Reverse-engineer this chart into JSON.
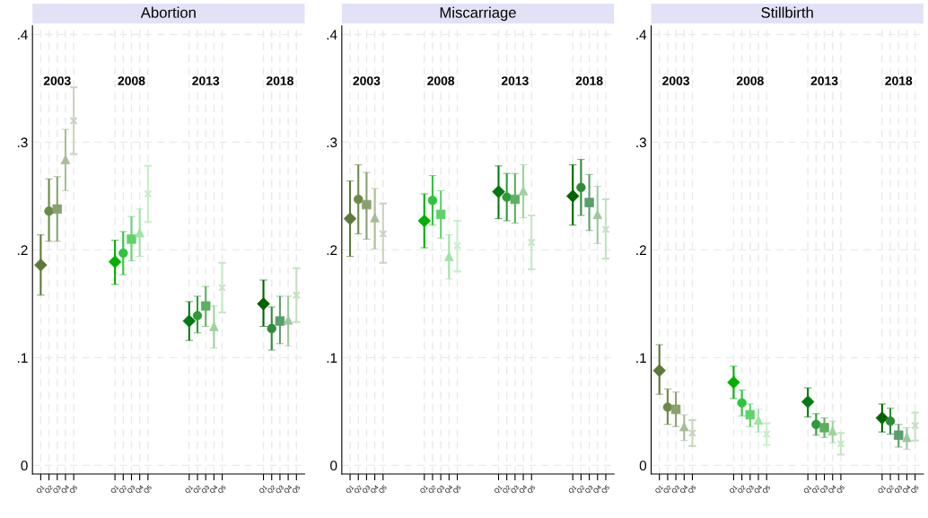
{
  "chart_data": [
    {
      "type": "scatter",
      "title": "Abortion",
      "annotations": [
        "2003",
        "2008",
        "2013",
        "2018"
      ],
      "categories": [
        "Q1",
        "Q2",
        "Q3",
        "Q4",
        "Q5",
        null,
        null,
        null,
        null,
        "Q1",
        "Q2",
        "Q3",
        "Q4",
        "Q5",
        null,
        null,
        null,
        null,
        "Q1",
        "Q2",
        "Q3",
        "Q4",
        "Q5",
        null,
        null,
        null,
        null,
        "Q1",
        "Q2",
        "Q3",
        "Q4",
        "Q5"
      ],
      "ylim": [
        -0.008,
        0.408
      ],
      "yticks": [
        {
          "value": 0,
          "label": "0"
        },
        {
          "value": 0.1,
          "label": ".1"
        },
        {
          "value": 0.2,
          "label": ".2"
        },
        {
          "value": 0.3,
          "label": ".3"
        },
        {
          "value": 0.4,
          "label": ".4"
        }
      ],
      "grid": true,
      "series": [
        {
          "marker": "diamond",
          "colors": [
            "#5b7a3a",
            null,
            null,
            null,
            null,
            null,
            null,
            null,
            null,
            "#00b000",
            null,
            null,
            null,
            null,
            null,
            null,
            null,
            null,
            "#007a10",
            null,
            null,
            null,
            null,
            null,
            null,
            null,
            null,
            "#006400",
            null,
            null,
            null,
            null
          ],
          "values": [
            0.186,
            null,
            null,
            null,
            null,
            null,
            null,
            null,
            null,
            0.189,
            null,
            null,
            null,
            null,
            null,
            null,
            null,
            null,
            0.134,
            null,
            null,
            null,
            null,
            null,
            null,
            null,
            null,
            0.15,
            null,
            null,
            null,
            null
          ],
          "errors": [
            [
              0.158,
              0.214
            ],
            null,
            null,
            null,
            null,
            null,
            null,
            null,
            null,
            [
              0.168,
              0.209
            ],
            null,
            null,
            null,
            null,
            null,
            null,
            null,
            null,
            [
              0.116,
              0.152
            ],
            null,
            null,
            null,
            null,
            null,
            null,
            null,
            null,
            [
              0.129,
              0.172
            ],
            null,
            null,
            null,
            null
          ]
        },
        {
          "marker": "circle",
          "colors": [
            null,
            "#6b8a48",
            null,
            null,
            null,
            null,
            null,
            null,
            null,
            null,
            "#2ec43e",
            null,
            null,
            null,
            null,
            null,
            null,
            null,
            null,
            "#2f9a3a",
            null,
            null,
            null,
            null,
            null,
            null,
            null,
            null,
            "#2e8b3a",
            null,
            null,
            null
          ],
          "values": [
            null,
            0.236,
            null,
            null,
            null,
            null,
            null,
            null,
            null,
            null,
            0.197,
            null,
            null,
            null,
            null,
            null,
            null,
            null,
            null,
            0.139,
            null,
            null,
            null,
            null,
            null,
            null,
            null,
            null,
            0.127,
            null,
            null,
            null
          ],
          "errors": [
            null,
            [
              0.208,
              0.266
            ],
            null,
            null,
            null,
            null,
            null,
            null,
            null,
            null,
            [
              0.177,
              0.217
            ],
            null,
            null,
            null,
            null,
            null,
            null,
            null,
            null,
            [
              0.123,
              0.157
            ],
            null,
            null,
            null,
            null,
            null,
            null,
            null,
            null,
            [
              0.107,
              0.147
            ],
            null,
            null,
            null
          ]
        },
        {
          "marker": "square",
          "colors": [
            null,
            null,
            "#8aa070",
            null,
            null,
            null,
            null,
            null,
            null,
            null,
            null,
            "#5fd36a",
            null,
            null,
            null,
            null,
            null,
            null,
            null,
            null,
            "#5cb060",
            null,
            null,
            null,
            null,
            null,
            null,
            null,
            null,
            "#5a9e6a",
            null,
            null
          ],
          "values": [
            null,
            null,
            0.238,
            null,
            null,
            null,
            null,
            null,
            null,
            null,
            null,
            0.21,
            null,
            null,
            null,
            null,
            null,
            null,
            null,
            null,
            0.148,
            null,
            null,
            null,
            null,
            null,
            null,
            null,
            null,
            0.134,
            null,
            null
          ],
          "errors": [
            null,
            null,
            [
              0.208,
              0.268
            ],
            null,
            null,
            null,
            null,
            null,
            null,
            null,
            null,
            [
              0.19,
              0.231
            ],
            null,
            null,
            null,
            null,
            null,
            null,
            null,
            null,
            [
              0.129,
              0.166
            ],
            null,
            null,
            null,
            null,
            null,
            null,
            null,
            null,
            [
              0.113,
              0.157
            ],
            null,
            null
          ]
        },
        {
          "marker": "triangle",
          "colors": [
            null,
            null,
            null,
            "#a8bc98",
            null,
            null,
            null,
            null,
            null,
            null,
            null,
            null,
            "#9fe2a5",
            null,
            null,
            null,
            null,
            null,
            null,
            null,
            null,
            "#9ed29e",
            null,
            null,
            null,
            null,
            null,
            null,
            null,
            null,
            "#9cc79f",
            null
          ],
          "values": [
            null,
            null,
            null,
            0.284,
            null,
            null,
            null,
            null,
            null,
            null,
            null,
            null,
            0.216,
            null,
            null,
            null,
            null,
            null,
            null,
            null,
            null,
            0.129,
            null,
            null,
            null,
            null,
            null,
            null,
            null,
            null,
            0.135,
            null
          ],
          "errors": [
            null,
            null,
            null,
            [
              0.255,
              0.312
            ],
            null,
            null,
            null,
            null,
            null,
            null,
            null,
            null,
            [
              0.194,
              0.238
            ],
            null,
            null,
            null,
            null,
            null,
            null,
            null,
            null,
            [
              0.109,
              0.148
            ],
            null,
            null,
            null,
            null,
            null,
            null,
            null,
            null,
            [
              0.111,
              0.157
            ],
            null
          ]
        },
        {
          "marker": "cross",
          "colors": [
            null,
            null,
            null,
            null,
            "#c8d4c0",
            null,
            null,
            null,
            null,
            null,
            null,
            null,
            null,
            "#c8eec8",
            null,
            null,
            null,
            null,
            null,
            null,
            null,
            null,
            "#c6e6c6",
            null,
            null,
            null,
            null,
            null,
            null,
            null,
            null,
            "#c4e0c4"
          ],
          "values": [
            null,
            null,
            null,
            null,
            0.32,
            null,
            null,
            null,
            null,
            null,
            null,
            null,
            null,
            0.252,
            null,
            null,
            null,
            null,
            null,
            null,
            null,
            null,
            0.165,
            null,
            null,
            null,
            null,
            null,
            null,
            null,
            null,
            0.158
          ],
          "errors": [
            null,
            null,
            null,
            null,
            [
              0.289,
              0.351
            ],
            null,
            null,
            null,
            null,
            null,
            null,
            null,
            null,
            [
              0.226,
              0.278
            ],
            null,
            null,
            null,
            null,
            null,
            null,
            null,
            null,
            [
              0.142,
              0.188
            ],
            null,
            null,
            null,
            null,
            null,
            null,
            null,
            null,
            [
              0.133,
              0.183
            ]
          ]
        }
      ]
    },
    {
      "type": "scatter",
      "title": "Miscarriage",
      "annotations": [
        "2003",
        "2008",
        "2013",
        "2018"
      ],
      "categories": [
        "Q1",
        "Q2",
        "Q3",
        "Q4",
        "Q5",
        null,
        null,
        null,
        null,
        "Q1",
        "Q2",
        "Q3",
        "Q4",
        "Q5",
        null,
        null,
        null,
        null,
        "Q1",
        "Q2",
        "Q3",
        "Q4",
        "Q5",
        null,
        null,
        null,
        null,
        "Q1",
        "Q2",
        "Q3",
        "Q4",
        "Q5"
      ],
      "ylim": [
        -0.008,
        0.408
      ],
      "yticks": [
        {
          "value": 0,
          "label": "0"
        },
        {
          "value": 0.1,
          "label": ".1"
        },
        {
          "value": 0.2,
          "label": ".2"
        },
        {
          "value": 0.3,
          "label": ".3"
        },
        {
          "value": 0.4,
          "label": ".4"
        }
      ],
      "grid": true,
      "series": [
        {
          "marker": "diamond",
          "colors": [
            "#5b7a3a",
            null,
            null,
            null,
            null,
            null,
            null,
            null,
            null,
            "#00b000",
            null,
            null,
            null,
            null,
            null,
            null,
            null,
            null,
            "#007a10",
            null,
            null,
            null,
            null,
            null,
            null,
            null,
            null,
            "#006400",
            null,
            null,
            null,
            null
          ],
          "values": [
            0.229,
            null,
            null,
            null,
            null,
            null,
            null,
            null,
            null,
            0.227,
            null,
            null,
            null,
            null,
            null,
            null,
            null,
            null,
            0.254,
            null,
            null,
            null,
            null,
            null,
            null,
            null,
            null,
            0.25,
            null,
            null,
            null,
            null
          ],
          "errors": [
            [
              0.194,
              0.264
            ],
            null,
            null,
            null,
            null,
            null,
            null,
            null,
            null,
            [
              0.202,
              0.252
            ],
            null,
            null,
            null,
            null,
            null,
            null,
            null,
            null,
            [
              0.229,
              0.278
            ],
            null,
            null,
            null,
            null,
            null,
            null,
            null,
            null,
            [
              0.223,
              0.279
            ],
            null,
            null,
            null,
            null
          ]
        },
        {
          "marker": "circle",
          "colors": [
            null,
            "#6b8a48",
            null,
            null,
            null,
            null,
            null,
            null,
            null,
            null,
            "#2ec43e",
            null,
            null,
            null,
            null,
            null,
            null,
            null,
            null,
            "#2f9a3a",
            null,
            null,
            null,
            null,
            null,
            null,
            null,
            null,
            "#2e8b3a",
            null,
            null,
            null
          ],
          "values": [
            null,
            0.247,
            null,
            null,
            null,
            null,
            null,
            null,
            null,
            null,
            0.246,
            null,
            null,
            null,
            null,
            null,
            null,
            null,
            null,
            0.249,
            null,
            null,
            null,
            null,
            null,
            null,
            null,
            null,
            0.258,
            null,
            null,
            null
          ],
          "errors": [
            null,
            [
              0.215,
              0.279
            ],
            null,
            null,
            null,
            null,
            null,
            null,
            null,
            null,
            [
              0.223,
              0.269
            ],
            null,
            null,
            null,
            null,
            null,
            null,
            null,
            null,
            [
              0.227,
              0.271
            ],
            null,
            null,
            null,
            null,
            null,
            null,
            null,
            null,
            [
              0.232,
              0.284
            ],
            null,
            null,
            null
          ]
        },
        {
          "marker": "square",
          "colors": [
            null,
            null,
            "#8aa070",
            null,
            null,
            null,
            null,
            null,
            null,
            null,
            null,
            "#5fd36a",
            null,
            null,
            null,
            null,
            null,
            null,
            null,
            null,
            "#5cb060",
            null,
            null,
            null,
            null,
            null,
            null,
            null,
            null,
            "#5a9e6a",
            null,
            null
          ],
          "values": [
            null,
            null,
            0.242,
            null,
            null,
            null,
            null,
            null,
            null,
            null,
            null,
            0.233,
            null,
            null,
            null,
            null,
            null,
            null,
            null,
            null,
            0.247,
            null,
            null,
            null,
            null,
            null,
            null,
            null,
            null,
            0.244,
            null,
            null
          ],
          "errors": [
            null,
            null,
            [
              0.21,
              0.272
            ],
            null,
            null,
            null,
            null,
            null,
            null,
            null,
            null,
            [
              0.211,
              0.255
            ],
            null,
            null,
            null,
            null,
            null,
            null,
            null,
            null,
            [
              0.225,
              0.271
            ],
            null,
            null,
            null,
            null,
            null,
            null,
            null,
            null,
            [
              0.218,
              0.27
            ],
            null,
            null
          ]
        },
        {
          "marker": "triangle",
          "colors": [
            null,
            null,
            null,
            "#a8bc98",
            null,
            null,
            null,
            null,
            null,
            null,
            null,
            null,
            "#9fe2a5",
            null,
            null,
            null,
            null,
            null,
            null,
            null,
            null,
            "#9ed29e",
            null,
            null,
            null,
            null,
            null,
            null,
            null,
            null,
            "#9cc79f",
            null
          ],
          "values": [
            null,
            null,
            null,
            0.23,
            null,
            null,
            null,
            null,
            null,
            null,
            null,
            null,
            0.194,
            null,
            null,
            null,
            null,
            null,
            null,
            null,
            null,
            0.255,
            null,
            null,
            null,
            null,
            null,
            null,
            null,
            null,
            0.233,
            null
          ],
          "errors": [
            null,
            null,
            null,
            [
              0.201,
              0.257
            ],
            null,
            null,
            null,
            null,
            null,
            null,
            null,
            null,
            [
              0.173,
              0.214
            ],
            null,
            null,
            null,
            null,
            null,
            null,
            null,
            null,
            [
              0.23,
              0.279
            ],
            null,
            null,
            null,
            null,
            null,
            null,
            null,
            null,
            [
              0.206,
              0.259
            ],
            null
          ]
        },
        {
          "marker": "cross",
          "colors": [
            null,
            null,
            null,
            null,
            "#c8d4c0",
            null,
            null,
            null,
            null,
            null,
            null,
            null,
            null,
            "#c8eec8",
            null,
            null,
            null,
            null,
            null,
            null,
            null,
            null,
            "#c6e6c6",
            null,
            null,
            null,
            null,
            null,
            null,
            null,
            null,
            "#c4e0c4"
          ],
          "values": [
            null,
            null,
            null,
            null,
            0.215,
            null,
            null,
            null,
            null,
            null,
            null,
            null,
            null,
            0.204,
            null,
            null,
            null,
            null,
            null,
            null,
            null,
            null,
            0.207,
            null,
            null,
            null,
            null,
            null,
            null,
            null,
            null,
            0.219
          ],
          "errors": [
            null,
            null,
            null,
            null,
            [
              0.188,
              0.243
            ],
            null,
            null,
            null,
            null,
            null,
            null,
            null,
            null,
            [
              0.18,
              0.227
            ],
            null,
            null,
            null,
            null,
            null,
            null,
            null,
            null,
            [
              0.182,
              0.232
            ],
            null,
            null,
            null,
            null,
            null,
            null,
            null,
            null,
            [
              0.192,
              0.247
            ]
          ]
        }
      ]
    },
    {
      "type": "scatter",
      "title": "Stillbirth",
      "annotations": [
        "2003",
        "2008",
        "2013",
        "2018"
      ],
      "categories": [
        "Q1",
        "Q2",
        "Q3",
        "Q4",
        "Q5",
        null,
        null,
        null,
        null,
        "Q1",
        "Q2",
        "Q3",
        "Q4",
        "Q5",
        null,
        null,
        null,
        null,
        "Q1",
        "Q2",
        "Q3",
        "Q4",
        "Q5",
        null,
        null,
        null,
        null,
        "Q1",
        "Q2",
        "Q3",
        "Q4",
        "Q5"
      ],
      "ylim": [
        -0.008,
        0.408
      ],
      "yticks": [
        {
          "value": 0,
          "label": "0"
        },
        {
          "value": 0.1,
          "label": ".1"
        },
        {
          "value": 0.2,
          "label": ".2"
        },
        {
          "value": 0.3,
          "label": ".3"
        },
        {
          "value": 0.4,
          "label": ".4"
        }
      ],
      "grid": true,
      "series": [
        {
          "marker": "diamond",
          "colors": [
            "#5b7a3a",
            null,
            null,
            null,
            null,
            null,
            null,
            null,
            null,
            "#00b000",
            null,
            null,
            null,
            null,
            null,
            null,
            null,
            null,
            "#007a10",
            null,
            null,
            null,
            null,
            null,
            null,
            null,
            null,
            "#006400",
            null,
            null,
            null,
            null
          ],
          "values": [
            0.088,
            null,
            null,
            null,
            null,
            null,
            null,
            null,
            null,
            0.077,
            null,
            null,
            null,
            null,
            null,
            null,
            null,
            null,
            0.059,
            null,
            null,
            null,
            null,
            null,
            null,
            null,
            null,
            0.044,
            null,
            null,
            null,
            null
          ],
          "errors": [
            [
              0.066,
              0.112
            ],
            null,
            null,
            null,
            null,
            null,
            null,
            null,
            null,
            [
              0.062,
              0.092
            ],
            null,
            null,
            null,
            null,
            null,
            null,
            null,
            null,
            [
              0.045,
              0.072
            ],
            null,
            null,
            null,
            null,
            null,
            null,
            null,
            null,
            [
              0.031,
              0.057
            ],
            null,
            null,
            null,
            null
          ]
        },
        {
          "marker": "circle",
          "colors": [
            null,
            "#6b8a48",
            null,
            null,
            null,
            null,
            null,
            null,
            null,
            null,
            "#2ec43e",
            null,
            null,
            null,
            null,
            null,
            null,
            null,
            null,
            "#2f9a3a",
            null,
            null,
            null,
            null,
            null,
            null,
            null,
            null,
            "#2e8b3a",
            null,
            null,
            null
          ],
          "values": [
            null,
            0.054,
            null,
            null,
            null,
            null,
            null,
            null,
            null,
            null,
            0.058,
            null,
            null,
            null,
            null,
            null,
            null,
            null,
            null,
            0.038,
            null,
            null,
            null,
            null,
            null,
            null,
            null,
            null,
            0.041,
            null,
            null,
            null
          ],
          "errors": [
            null,
            [
              0.038,
              0.071
            ],
            null,
            null,
            null,
            null,
            null,
            null,
            null,
            null,
            [
              0.046,
              0.07
            ],
            null,
            null,
            null,
            null,
            null,
            null,
            null,
            null,
            [
              0.028,
              0.048
            ],
            null,
            null,
            null,
            null,
            null,
            null,
            null,
            null,
            [
              0.029,
              0.053
            ],
            null,
            null,
            null
          ]
        },
        {
          "marker": "square",
          "colors": [
            null,
            null,
            "#8aa070",
            null,
            null,
            null,
            null,
            null,
            null,
            null,
            null,
            "#5fd36a",
            null,
            null,
            null,
            null,
            null,
            null,
            null,
            null,
            "#5cb060",
            null,
            null,
            null,
            null,
            null,
            null,
            null,
            null,
            "#5a9e6a",
            null,
            null
          ],
          "values": [
            null,
            null,
            0.052,
            null,
            null,
            null,
            null,
            null,
            null,
            null,
            null,
            0.047,
            null,
            null,
            null,
            null,
            null,
            null,
            null,
            null,
            0.035,
            null,
            null,
            null,
            null,
            null,
            null,
            null,
            null,
            0.028,
            null,
            null
          ],
          "errors": [
            null,
            null,
            [
              0.036,
              0.068
            ],
            null,
            null,
            null,
            null,
            null,
            null,
            null,
            null,
            [
              0.036,
              0.057
            ],
            null,
            null,
            null,
            null,
            null,
            null,
            null,
            null,
            [
              0.026,
              0.044
            ],
            null,
            null,
            null,
            null,
            null,
            null,
            null,
            null,
            [
              0.017,
              0.038
            ],
            null,
            null
          ]
        },
        {
          "marker": "triangle",
          "colors": [
            null,
            null,
            null,
            "#a8bc98",
            null,
            null,
            null,
            null,
            null,
            null,
            null,
            null,
            "#9fe2a5",
            null,
            null,
            null,
            null,
            null,
            null,
            null,
            null,
            "#9ed29e",
            null,
            null,
            null,
            null,
            null,
            null,
            null,
            null,
            "#9cc79f",
            null
          ],
          "values": [
            null,
            null,
            null,
            0.036,
            null,
            null,
            null,
            null,
            null,
            null,
            null,
            null,
            0.042,
            null,
            null,
            null,
            null,
            null,
            null,
            null,
            null,
            0.032,
            null,
            null,
            null,
            null,
            null,
            null,
            null,
            null,
            0.026,
            null
          ],
          "errors": [
            null,
            null,
            null,
            [
              0.023,
              0.047
            ],
            null,
            null,
            null,
            null,
            null,
            null,
            null,
            null,
            [
              0.031,
              0.052
            ],
            null,
            null,
            null,
            null,
            null,
            null,
            null,
            null,
            [
              0.021,
              0.041
            ],
            null,
            null,
            null,
            null,
            null,
            null,
            null,
            null,
            [
              0.015,
              0.035
            ],
            null
          ]
        },
        {
          "marker": "cross",
          "colors": [
            null,
            null,
            null,
            null,
            "#c8d4c0",
            null,
            null,
            null,
            null,
            null,
            null,
            null,
            null,
            "#c8eec8",
            null,
            null,
            null,
            null,
            null,
            null,
            null,
            null,
            "#c6e6c6",
            null,
            null,
            null,
            null,
            null,
            null,
            null,
            null,
            "#c4e0c4"
          ],
          "values": [
            null,
            null,
            null,
            null,
            0.03,
            null,
            null,
            null,
            null,
            null,
            null,
            null,
            null,
            0.029,
            null,
            null,
            null,
            null,
            null,
            null,
            null,
            null,
            0.02,
            null,
            null,
            null,
            null,
            null,
            null,
            null,
            null,
            0.037
          ],
          "errors": [
            null,
            null,
            null,
            null,
            [
              0.018,
              0.042
            ],
            null,
            null,
            null,
            null,
            null,
            null,
            null,
            null,
            [
              0.019,
              0.039
            ],
            null,
            null,
            null,
            null,
            null,
            null,
            null,
            null,
            [
              0.01,
              0.03
            ],
            null,
            null,
            null,
            null,
            null,
            null,
            null,
            null,
            [
              0.023,
              0.049
            ]
          ]
        }
      ]
    }
  ]
}
